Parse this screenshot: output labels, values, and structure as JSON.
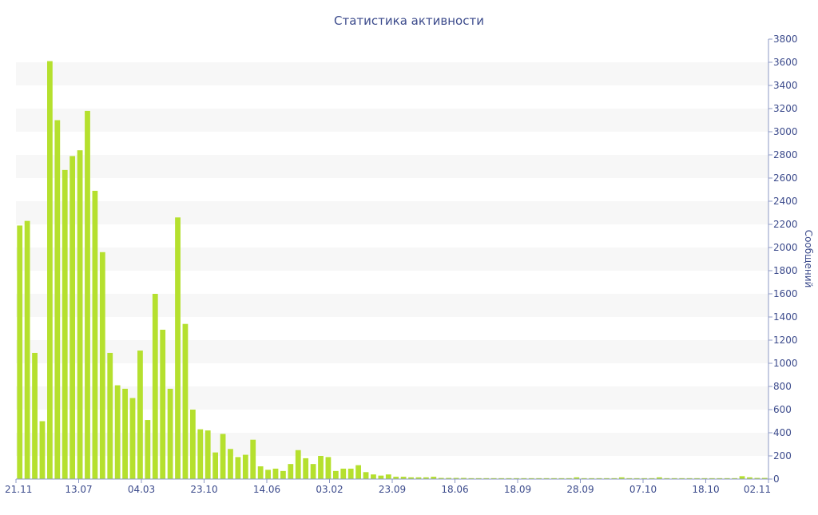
{
  "chart_data": {
    "type": "bar",
    "title": "Статистика активности",
    "xlabel": "",
    "ylabel": "Сообщений",
    "ylim": [
      0,
      3800
    ],
    "y_ticks": [
      0,
      200,
      400,
      600,
      800,
      1000,
      1200,
      1400,
      1600,
      1800,
      2000,
      2200,
      2400,
      2600,
      2800,
      3000,
      3200,
      3400,
      3600,
      3800
    ],
    "y_axis_position": "right",
    "grid": "alternating horizontal bands",
    "x_tick_labels": [
      "21.11",
      "13.07",
      "04.03",
      "23.10",
      "14.06",
      "03.02",
      "23.09",
      "18.06",
      "18.09",
      "28.09",
      "07.10",
      "18.10",
      "02.11"
    ],
    "bar_color": "#b5e02e",
    "band_color": "#f7f7f7",
    "text_color": "#3c4b8c",
    "values": [
      2190,
      2230,
      1090,
      500,
      3610,
      3100,
      2670,
      2790,
      2840,
      3180,
      2490,
      1960,
      1090,
      810,
      780,
      700,
      1110,
      510,
      1600,
      1290,
      780,
      2260,
      1340,
      600,
      430,
      420,
      230,
      390,
      260,
      190,
      210,
      340,
      110,
      80,
      90,
      70,
      130,
      250,
      180,
      130,
      200,
      190,
      70,
      90,
      90,
      120,
      60,
      40,
      30,
      40,
      20,
      20,
      15,
      15,
      15,
      20,
      10,
      10,
      10,
      10,
      8,
      8,
      8,
      8,
      8,
      8,
      8,
      8,
      8,
      8,
      8,
      8,
      8,
      8,
      15,
      8,
      8,
      8,
      8,
      8,
      15,
      8,
      8,
      8,
      8,
      15,
      8,
      8,
      8,
      8,
      8,
      8,
      8,
      8,
      8,
      8,
      25,
      15,
      10,
      10
    ]
  }
}
